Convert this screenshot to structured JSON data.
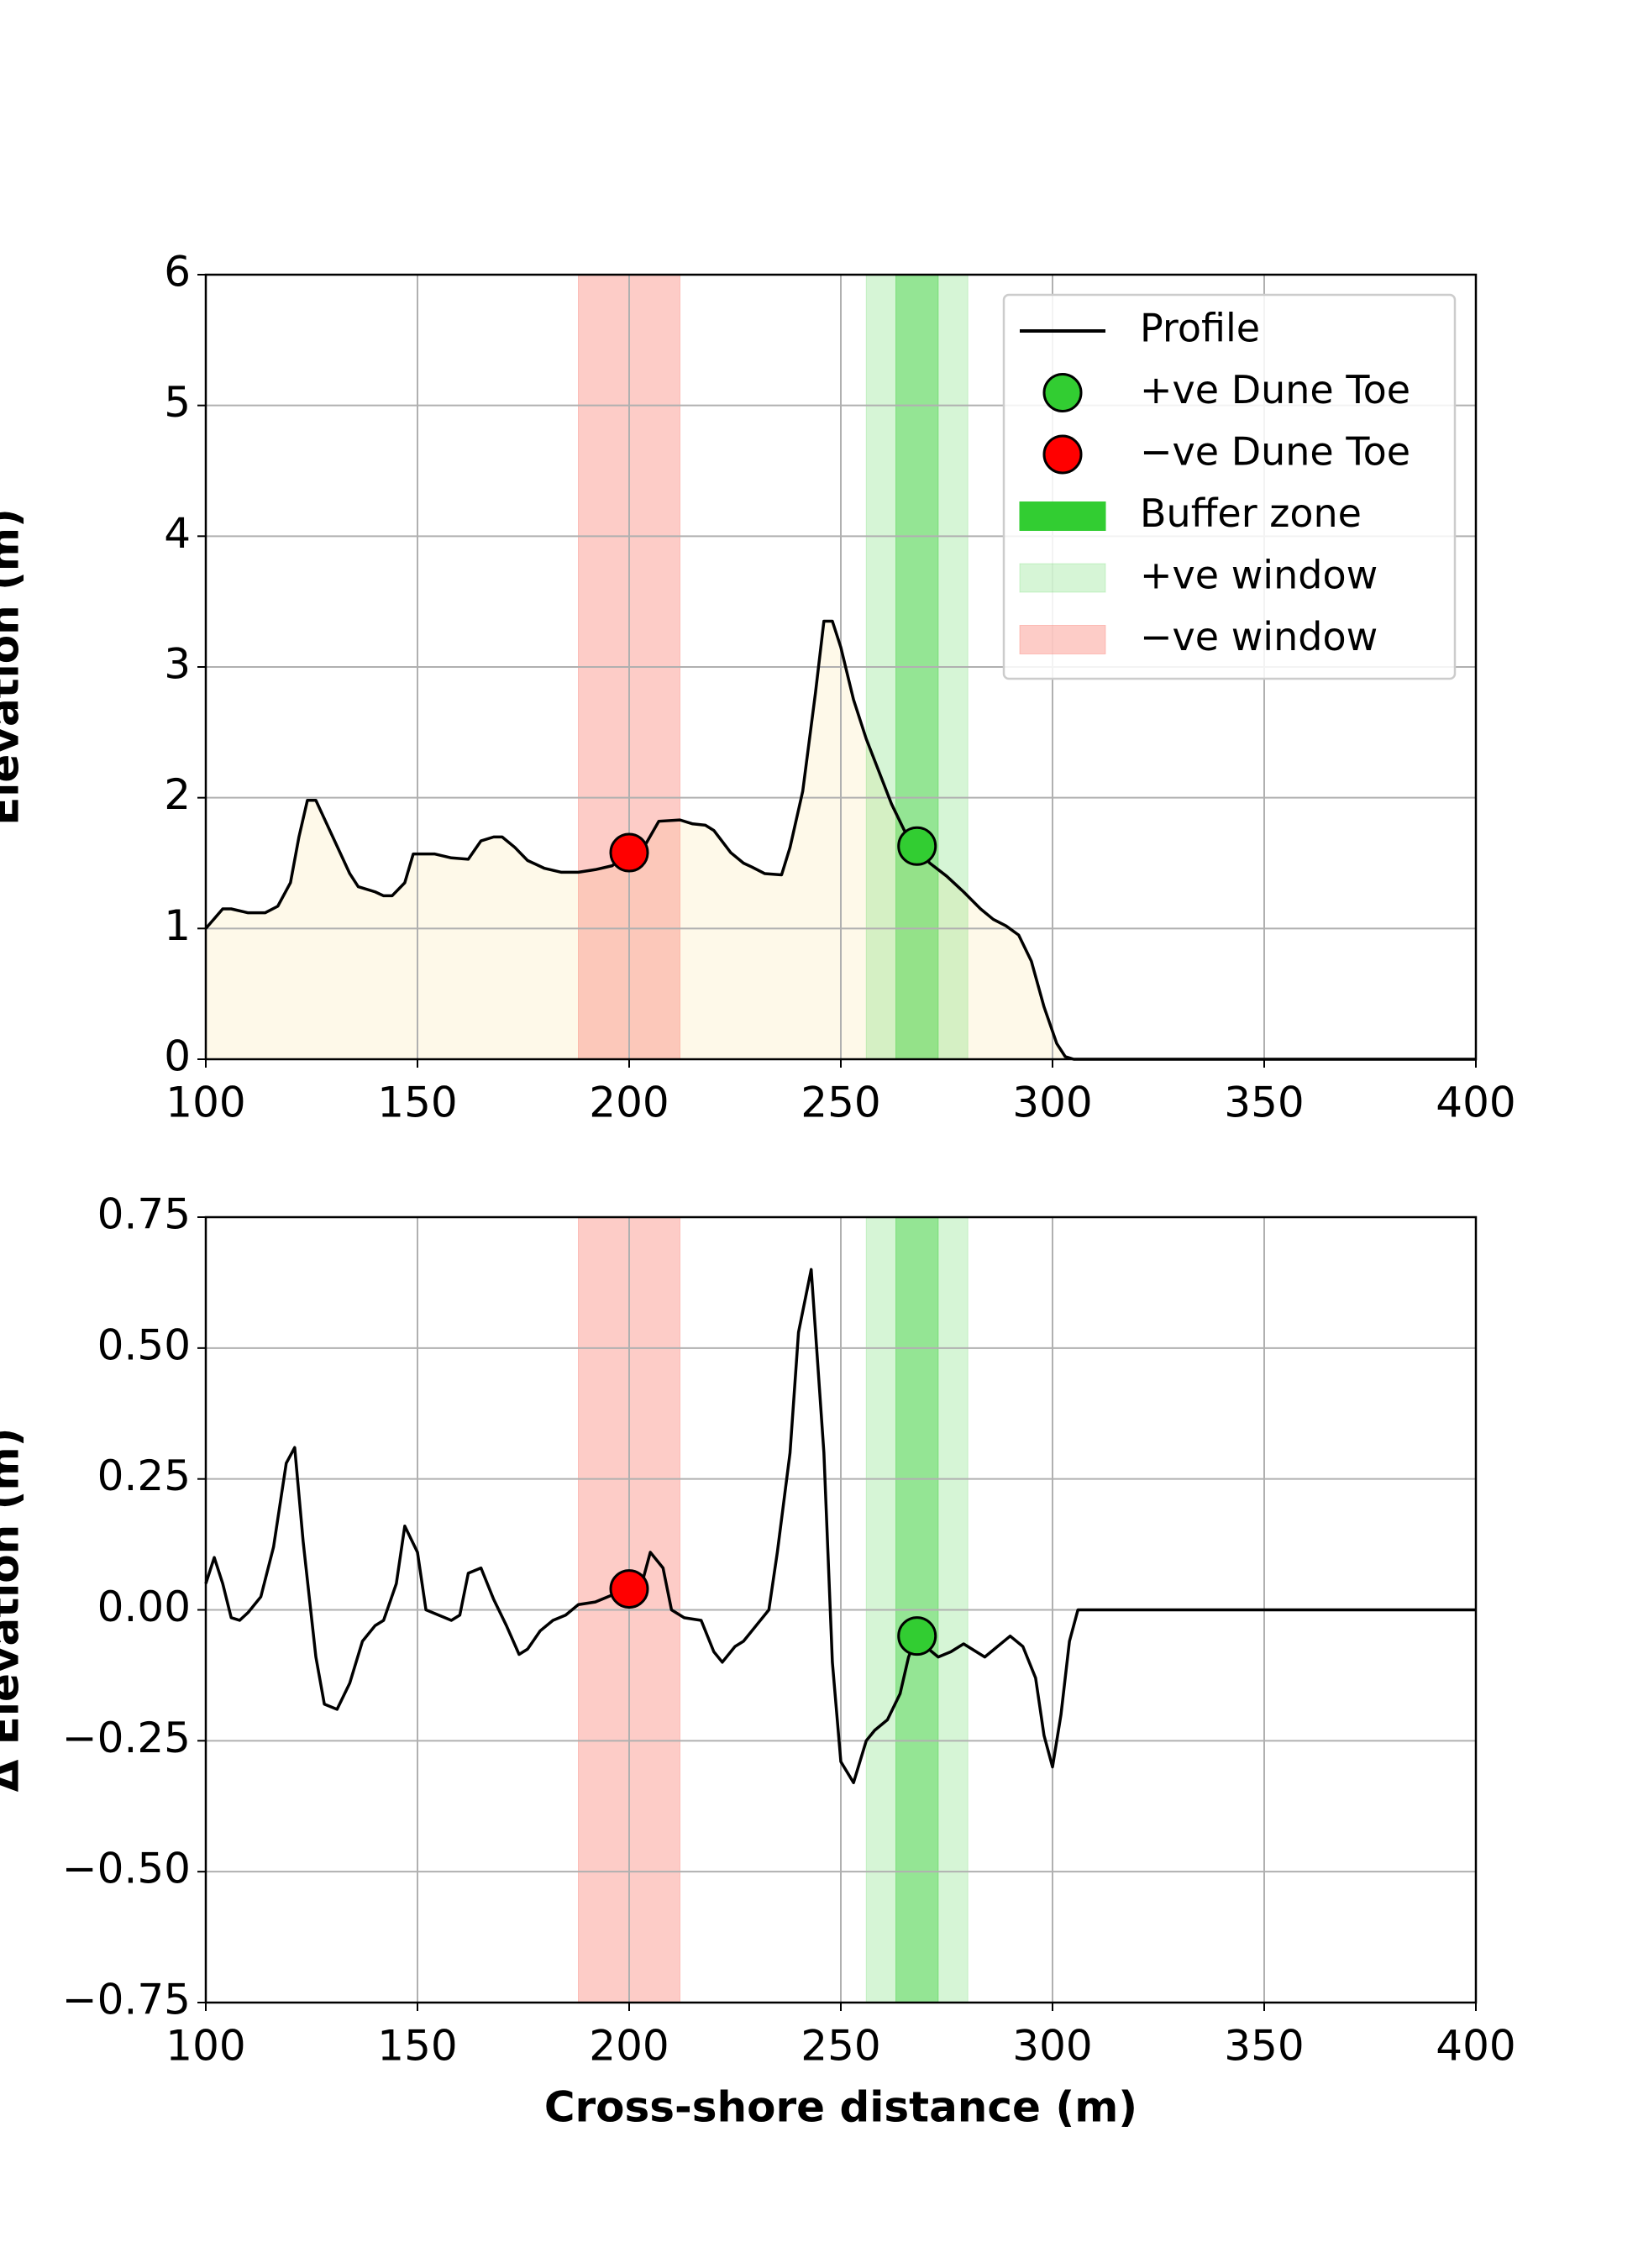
{
  "chart_data": [
    {
      "type": "line",
      "ylabel": "Elevation (m)",
      "x": [
        100,
        104,
        106,
        110,
        114,
        117,
        120,
        122,
        124,
        126,
        130,
        134,
        136,
        140,
        142,
        144,
        147,
        149,
        154,
        158,
        162,
        165,
        168,
        170,
        173,
        176,
        180,
        184,
        188,
        192,
        196,
        200,
        204,
        207,
        212,
        215,
        218,
        220,
        224,
        227,
        229,
        232,
        236,
        238,
        241,
        244,
        246,
        248,
        250,
        253,
        256,
        259,
        262,
        265,
        268,
        271,
        275,
        279,
        283,
        286,
        289,
        292,
        295,
        298,
        301,
        303,
        305,
        400
      ],
      "series": [
        {
          "name": "Profile",
          "color": "#000000",
          "fill": "#fef9e9",
          "values": [
            1.0,
            1.15,
            1.15,
            1.12,
            1.12,
            1.17,
            1.35,
            1.7,
            1.98,
            1.98,
            1.7,
            1.42,
            1.32,
            1.28,
            1.25,
            1.25,
            1.35,
            1.57,
            1.57,
            1.54,
            1.53,
            1.67,
            1.7,
            1.7,
            1.62,
            1.52,
            1.46,
            1.43,
            1.43,
            1.45,
            1.48,
            1.58,
            1.65,
            1.82,
            1.83,
            1.8,
            1.79,
            1.75,
            1.58,
            1.5,
            1.47,
            1.42,
            1.41,
            1.62,
            2.05,
            2.8,
            3.35,
            3.35,
            3.15,
            2.75,
            2.45,
            2.2,
            1.95,
            1.75,
            1.62,
            1.5,
            1.4,
            1.28,
            1.15,
            1.07,
            1.02,
            0.95,
            0.75,
            0.4,
            0.12,
            0.02,
            0,
            0
          ]
        }
      ],
      "points": [
        {
          "name": "+ve Dune Toe",
          "x": 268,
          "y": 1.63,
          "color": "#32cd32"
        },
        {
          "name": "−ve Dune Toe",
          "x": 200,
          "y": 1.58,
          "color": "#ff0000"
        }
      ],
      "spans": [
        {
          "name": "Buffer zone",
          "range": [
            263,
            273
          ],
          "color": "#32cd32",
          "alpha": 0.4,
          "legend_alpha": 1
        },
        {
          "name": "+ve window",
          "range": [
            256,
            280
          ],
          "color": "#32cd32",
          "alpha": 0.2,
          "legend_alpha": 0.2
        },
        {
          "name": "−ve window",
          "range": [
            188,
            212
          ],
          "color": "#fa8072",
          "alpha": 0.4,
          "legend_alpha": 0.4
        }
      ],
      "xlim": [
        100,
        400
      ],
      "xticks": [
        100,
        150,
        200,
        250,
        300,
        350,
        400
      ],
      "ylim": [
        0,
        6
      ],
      "yticks": [
        0,
        1,
        2,
        3,
        4,
        5,
        6
      ],
      "grid": true,
      "legend": "upper right"
    },
    {
      "type": "line",
      "ylabel": "Δ Elevation (m)",
      "xlabel": "Cross-shore distance (m)",
      "x": [
        100,
        102,
        104,
        106,
        108,
        110,
        113,
        116,
        119,
        121,
        123,
        126,
        128,
        131,
        134,
        137,
        140,
        142,
        145,
        147,
        150,
        152,
        155,
        158,
        160,
        162,
        165,
        168,
        171,
        174,
        176,
        179,
        182,
        185,
        188,
        192,
        195,
        198,
        200,
        203,
        205,
        208,
        210,
        213,
        217,
        220,
        222,
        225,
        227,
        230,
        233,
        235,
        238,
        240,
        243,
        246,
        248,
        250,
        253,
        256,
        258,
        261,
        264,
        266,
        268,
        270,
        273,
        276,
        279,
        282,
        284,
        287,
        290,
        293,
        296,
        298,
        300,
        302,
        304,
        306,
        400
      ],
      "series": [
        {
          "color": "#000000",
          "values": [
            0.05,
            0.1,
            0.05,
            -0.015,
            -0.02,
            -0.005,
            0.025,
            0.12,
            0.28,
            0.31,
            0.13,
            -0.09,
            -0.18,
            -0.19,
            -0.14,
            -0.06,
            -0.03,
            -0.02,
            0.05,
            0.16,
            0.11,
            0.0,
            -0.01,
            -0.02,
            -0.01,
            0.07,
            0.08,
            0.02,
            -0.03,
            -0.085,
            -0.075,
            -0.04,
            -0.02,
            -0.01,
            0.01,
            0.015,
            0.025,
            0.035,
            0.04,
            0.05,
            0.11,
            0.08,
            0.0,
            -0.015,
            -0.02,
            -0.08,
            -0.1,
            -0.07,
            -0.06,
            -0.03,
            0.0,
            0.11,
            0.3,
            0.53,
            0.65,
            0.3,
            -0.1,
            -0.29,
            -0.33,
            -0.25,
            -0.23,
            -0.21,
            -0.16,
            -0.09,
            -0.05,
            -0.07,
            -0.09,
            -0.08,
            -0.065,
            -0.08,
            -0.09,
            -0.07,
            -0.05,
            -0.07,
            -0.13,
            -0.24,
            -0.3,
            -0.2,
            -0.06,
            0,
            0
          ]
        }
      ],
      "points": [
        {
          "x": 268,
          "y": -0.05,
          "color": "#32cd32"
        },
        {
          "x": 200,
          "y": 0.04,
          "color": "#ff0000"
        }
      ],
      "spans": [
        {
          "range": [
            263,
            273
          ],
          "color": "#32cd32",
          "alpha": 0.4
        },
        {
          "range": [
            256,
            280
          ],
          "color": "#32cd32",
          "alpha": 0.2
        },
        {
          "range": [
            188,
            212
          ],
          "color": "#fa8072",
          "alpha": 0.4
        }
      ],
      "xlim": [
        100,
        400
      ],
      "xticks": [
        100,
        150,
        200,
        250,
        300,
        350,
        400
      ],
      "ylim": [
        -0.75,
        0.75
      ],
      "yticks": [
        {
          "value": -0.75,
          "label": "−0.75"
        },
        {
          "value": -0.5,
          "label": "−0.50"
        },
        {
          "value": -0.25,
          "label": "−0.25"
        },
        {
          "value": 0,
          "label": "0.00"
        },
        {
          "value": 0.25,
          "label": "0.25"
        },
        {
          "value": 0.5,
          "label": "0.50"
        },
        {
          "value": 0.75,
          "label": "0.75"
        }
      ],
      "grid": true
    }
  ]
}
